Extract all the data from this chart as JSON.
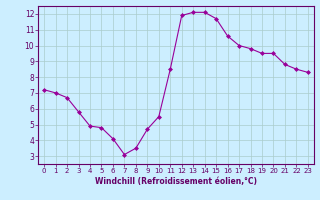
{
  "x": [
    0,
    1,
    2,
    3,
    4,
    5,
    6,
    7,
    8,
    9,
    10,
    11,
    12,
    13,
    14,
    15,
    16,
    17,
    18,
    19,
    20,
    21,
    22,
    23
  ],
  "y": [
    7.2,
    7.0,
    6.7,
    5.8,
    4.9,
    4.8,
    4.1,
    3.1,
    3.5,
    4.7,
    5.5,
    8.5,
    11.9,
    12.1,
    12.1,
    11.7,
    10.6,
    10.0,
    9.8,
    9.5,
    9.5,
    8.8,
    8.5,
    8.3
  ],
  "line_color": "#990099",
  "marker": "D",
  "marker_size": 2.0,
  "bg_color": "#cceeff",
  "grid_color": "#aacccc",
  "axis_color": "#660066",
  "xlabel": "Windchill (Refroidissement éolien,°C)",
  "xlabel_color": "#660066",
  "tick_color": "#660066",
  "xlim": [
    -0.5,
    23.5
  ],
  "ylim": [
    2.5,
    12.5
  ],
  "yticks": [
    3,
    4,
    5,
    6,
    7,
    8,
    9,
    10,
    11,
    12
  ],
  "xticks": [
    0,
    1,
    2,
    3,
    4,
    5,
    6,
    7,
    8,
    9,
    10,
    11,
    12,
    13,
    14,
    15,
    16,
    17,
    18,
    19,
    20,
    21,
    22,
    23
  ]
}
